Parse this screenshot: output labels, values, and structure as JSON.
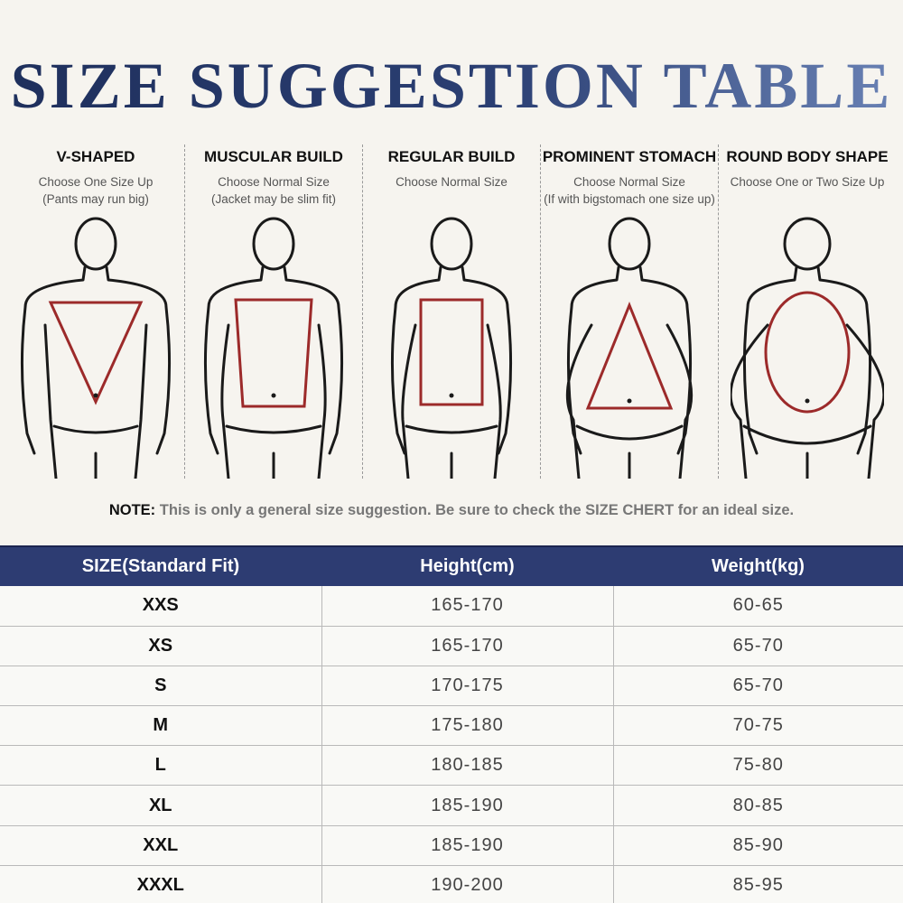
{
  "title": "SIZE SUGGESTION TABLE",
  "body_types": [
    {
      "name": "V-SHAPED",
      "line1": "Choose One Size Up",
      "line2": "(Pants may run big)",
      "shape": "inverted-triangle",
      "icon": "v-shaped-figure-icon"
    },
    {
      "name": "MUSCULAR BUILD",
      "line1": "Choose Normal Size",
      "line2": "(Jacket may be slim fit)",
      "shape": "trapezoid",
      "icon": "muscular-figure-icon"
    },
    {
      "name": "REGULAR BUILD",
      "line1": "Choose Normal Size",
      "line2": "",
      "shape": "rectangle",
      "icon": "regular-figure-icon"
    },
    {
      "name": "PROMINENT STOMACH",
      "line1": "Choose Normal Size",
      "line2": "(If with bigstomach one size up)",
      "shape": "triangle",
      "icon": "stomach-figure-icon"
    },
    {
      "name": "ROUND BODY SHAPE",
      "line1": "Choose One or Two Size Up",
      "line2": "",
      "shape": "oval",
      "icon": "round-figure-icon"
    }
  ],
  "note": {
    "label": "NOTE:",
    "text": "This is only a general size suggestion. Be sure to check the SIZE CHERT for an ideal size."
  },
  "table": {
    "headers": [
      "SIZE(Standard Fit)",
      "Height(cm)",
      "Weight(kg)"
    ],
    "rows": [
      [
        "XXS",
        "165-170",
        "60-65"
      ],
      [
        "XS",
        "165-170",
        "65-70"
      ],
      [
        "S",
        "170-175",
        "65-70"
      ],
      [
        "M",
        "175-180",
        "70-75"
      ],
      [
        "L",
        "180-185",
        "75-80"
      ],
      [
        "XL",
        "185-190",
        "80-85"
      ],
      [
        "XXL",
        "185-190",
        "85-90"
      ],
      [
        "XXXL",
        "190-200",
        "85-95"
      ]
    ]
  },
  "colors": {
    "title_dark": "#1e2f5c",
    "title_light": "#6a82b5",
    "header_bg": "#2d3c72",
    "shape_red": "#9c2a2a",
    "outline": "#1a1a1a"
  }
}
